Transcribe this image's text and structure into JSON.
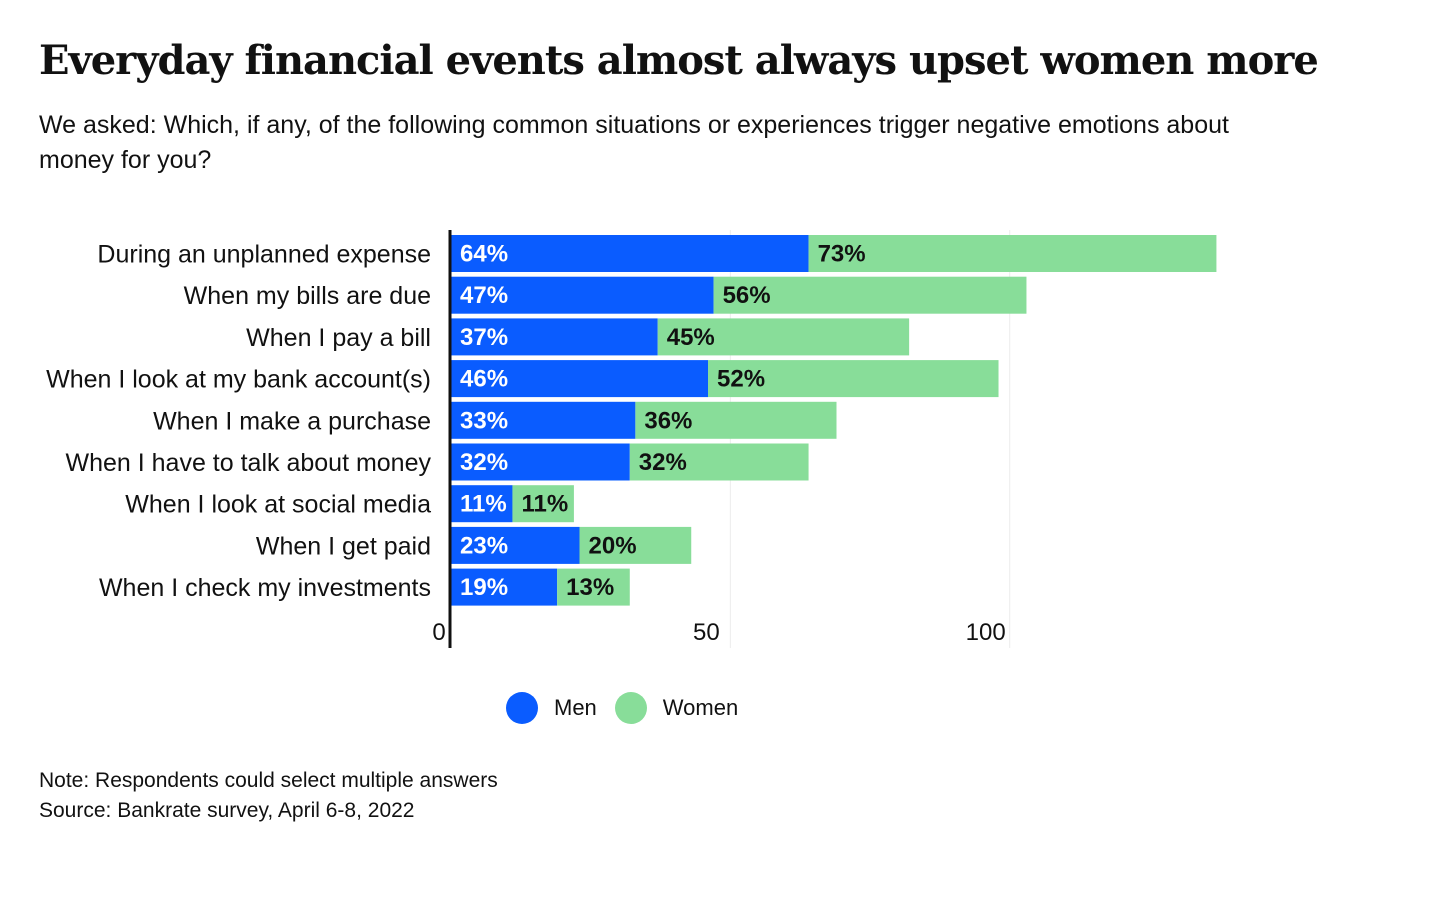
{
  "chart_data": {
    "type": "bar",
    "orientation": "horizontal",
    "stacked": true,
    "title": "Everyday financial events almost always upset women more",
    "subtitle": "We asked: Which, if any, of the following common situations or experiences trigger negative emotions about money for you?",
    "categories": [
      "During an unplanned expense",
      "When my bills are due",
      "When I pay a bill",
      "When I look at my bank account(s)",
      "When I make a purchase",
      "When I have to talk about money",
      "When I look at social media",
      "When I get paid",
      "When I check my investments"
    ],
    "series": [
      {
        "name": "Men",
        "color": "#0a5cff",
        "label_color": "#ffffff",
        "values": [
          64,
          47,
          37,
          46,
          33,
          32,
          11,
          23,
          19
        ],
        "labels": [
          "64%",
          "47%",
          "37%",
          "46%",
          "33%",
          "32%",
          "11%",
          "23%",
          "19%"
        ]
      },
      {
        "name": "Women",
        "color": "#88dd99",
        "label_color": "#111111",
        "values": [
          73,
          56,
          45,
          52,
          36,
          32,
          11,
          20,
          13
        ],
        "labels": [
          "73%",
          "56%",
          "45%",
          "52%",
          "36%",
          "32%",
          "11%",
          "20%",
          "13%"
        ]
      }
    ],
    "xlim": [
      0,
      140
    ],
    "xticks": [
      0,
      50,
      100
    ],
    "xtick_labels": [
      "0",
      "50",
      "100"
    ],
    "grid": true,
    "legend_position": "bottom"
  },
  "legend": {
    "items": [
      {
        "label": "Men",
        "color": "#0a5cff"
      },
      {
        "label": "Women",
        "color": "#88dd99"
      }
    ]
  },
  "notes": {
    "note": "Note: Respondents could select multiple answers",
    "source": "Source: Bankrate survey, April 6-8, 2022"
  }
}
